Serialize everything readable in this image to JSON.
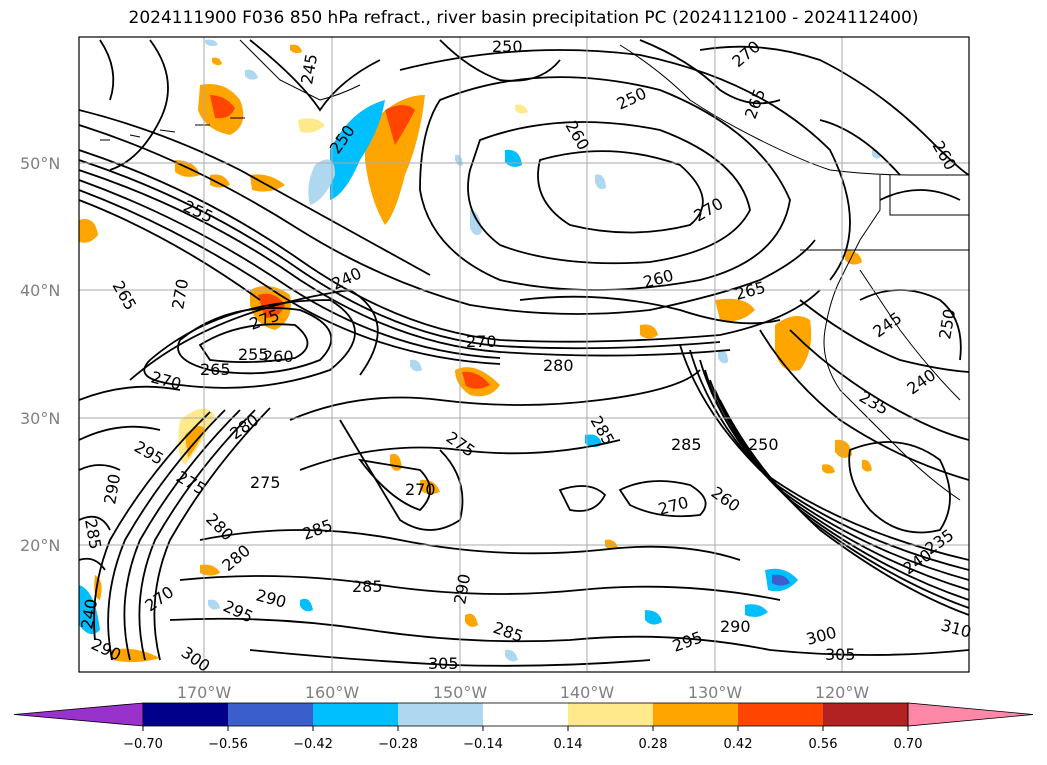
{
  "title": "2024111900 F036 850 hPa refract., river basin precipitation PC (2024112100 - 2024112400)",
  "lat_labels": [
    "50°N",
    "40°N",
    "30°N",
    "20°N"
  ],
  "lon_labels": [
    "170°W",
    "160°W",
    "150°W",
    "140°W",
    "130°W",
    "120°W"
  ],
  "contour_labels": [
    "250",
    "270",
    "245",
    "250",
    "260",
    "250",
    "265",
    "260",
    "270",
    "255",
    "260",
    "265",
    "270",
    "240",
    "270",
    "280",
    "265",
    "275",
    "255",
    "260",
    "275",
    "270",
    "265",
    "280",
    "285",
    "250",
    "285",
    "275",
    "275",
    "280",
    "270",
    "295",
    "290",
    "285",
    "270",
    "280",
    "290",
    "295",
    "285",
    "290",
    "290",
    "285",
    "300",
    "295",
    "290",
    "305",
    "300",
    "305",
    "310",
    "285",
    "245",
    "250",
    "240",
    "235",
    "240",
    "235",
    "270",
    "260",
    "240"
  ],
  "colorbar": {
    "ticks": [
      "−0.70",
      "−0.56",
      "−0.42",
      "−0.28",
      "−0.14",
      "0.14",
      "0.28",
      "0.42",
      "0.56",
      "0.70"
    ],
    "colors": [
      "#9932cc",
      "#00008b",
      "#3a5fcd",
      "#00bfff",
      "#add8f0",
      "#ffffff",
      "#ffe98a",
      "#ffa500",
      "#ff4500",
      "#b22222",
      "#ff88a8"
    ]
  }
}
